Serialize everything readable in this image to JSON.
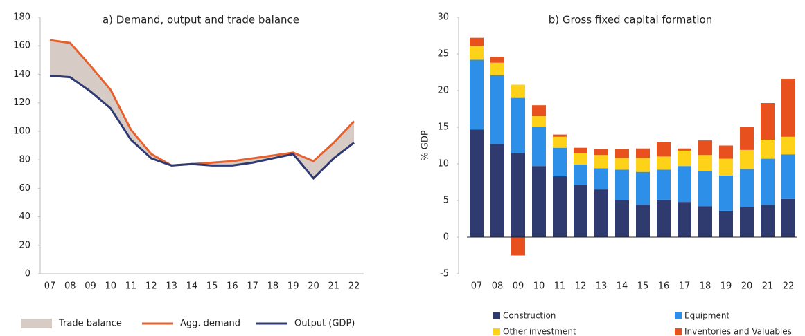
{
  "chart_data": [
    {
      "type": "line",
      "title": "a) Demand, output and trade balance",
      "categories": [
        "07",
        "08",
        "09",
        "10",
        "11",
        "12",
        "13",
        "14",
        "15",
        "16",
        "17",
        "18",
        "19",
        "20",
        "21",
        "22"
      ],
      "band": {
        "name": "Trade balance",
        "color": "#d6ccc5",
        "between": [
          0,
          1
        ]
      },
      "series": [
        {
          "name": "Agg. demand",
          "color": "#e8602c",
          "values": [
            164,
            162,
            146,
            129,
            101,
            84,
            76,
            77,
            78,
            79,
            81,
            83,
            85,
            79,
            92,
            107
          ]
        },
        {
          "name": "Output (GDP)",
          "color": "#2f3a73",
          "values": [
            139,
            138,
            128,
            116,
            94,
            81,
            76,
            77,
            76,
            76,
            78,
            81,
            84,
            67,
            81,
            92
          ]
        }
      ],
      "ylim": [
        0,
        180
      ],
      "yticks": [
        0,
        20,
        40,
        60,
        80,
        100,
        120,
        140,
        160,
        180
      ]
    },
    {
      "type": "stacked_bar",
      "title": "b) Gross fixed capital formation",
      "ylabel": "% GDP",
      "categories": [
        "07",
        "08",
        "09",
        "10",
        "11",
        "12",
        "13",
        "14",
        "15",
        "16",
        "17",
        "18",
        "19",
        "20",
        "21",
        "22"
      ],
      "series": [
        {
          "name": "Construction",
          "color": "#2f3a6e",
          "values": [
            14.7,
            12.7,
            11.5,
            9.7,
            8.3,
            7.1,
            6.5,
            5.0,
            4.4,
            5.1,
            4.8,
            4.2,
            3.6,
            4.1,
            4.4,
            5.2
          ]
        },
        {
          "name": "Equipment",
          "color": "#2e8fe8",
          "values": [
            9.5,
            9.4,
            7.5,
            5.3,
            3.9,
            2.8,
            2.9,
            4.2,
            4.5,
            4.1,
            4.9,
            4.8,
            4.8,
            5.2,
            6.3,
            6.1
          ]
        },
        {
          "name": "Other investment",
          "color": "#ffd21a",
          "values": [
            1.9,
            1.7,
            1.8,
            1.5,
            1.5,
            1.6,
            1.8,
            1.6,
            1.9,
            1.8,
            2.1,
            2.2,
            2.3,
            2.6,
            2.6,
            2.4
          ]
        },
        {
          "name": "Inventories and Valuables",
          "color": "#e8501e",
          "values": [
            1.1,
            0.8,
            -2.5,
            1.5,
            0.3,
            0.7,
            0.8,
            1.2,
            1.3,
            2.0,
            0.3,
            2.0,
            1.8,
            3.1,
            5.0,
            7.9
          ]
        }
      ],
      "ylim": [
        -5,
        30
      ],
      "yticks": [
        -5,
        0,
        5,
        10,
        15,
        20,
        25,
        30
      ]
    }
  ]
}
